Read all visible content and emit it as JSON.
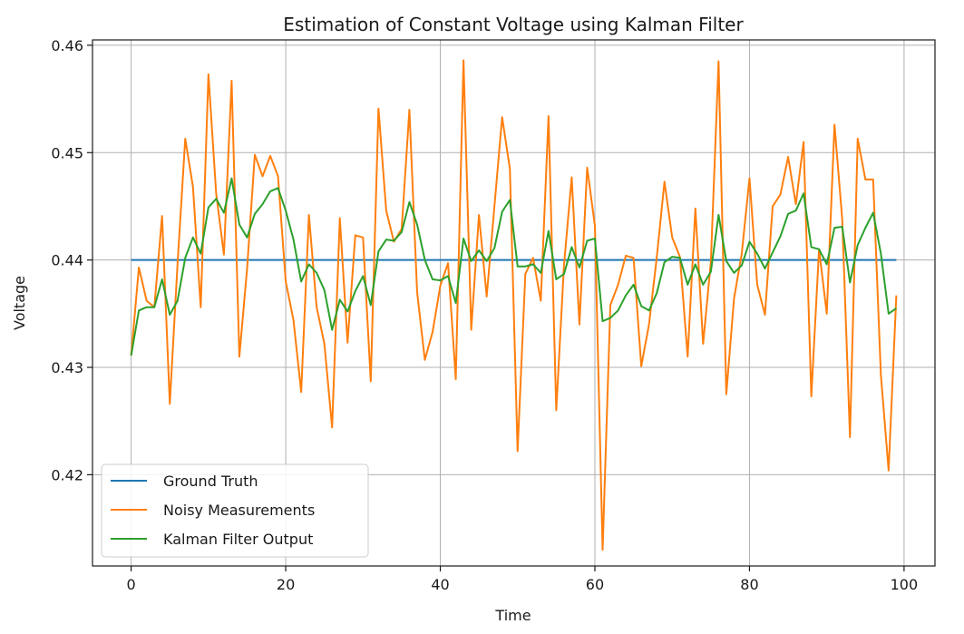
{
  "chart_data": {
    "type": "line",
    "title": "Estimation of Constant Voltage using Kalman Filter",
    "xlabel": "Time",
    "ylabel": "Voltage",
    "xlim": [
      -5,
      104
    ],
    "ylim": [
      0.4115,
      0.4605
    ],
    "xticks": [
      0,
      20,
      40,
      60,
      80,
      100
    ],
    "yticks": [
      0.42,
      0.43,
      0.44,
      0.45,
      0.46
    ],
    "ytick_labels": [
      "0.42",
      "0.43",
      "0.44",
      "0.45",
      "0.46"
    ],
    "grid": true,
    "legend_position": "lower-left",
    "series": [
      {
        "name": "Ground Truth",
        "color": "#1f77b4",
        "x": [
          0,
          99
        ],
        "values": [
          0.44,
          0.44
        ]
      },
      {
        "name": "Noisy Measurements",
        "color": "#ff7f0e",
        "x": [
          0,
          1,
          2,
          3,
          4,
          5,
          6,
          7,
          8,
          9,
          10,
          11,
          12,
          13,
          14,
          15,
          16,
          17,
          18,
          19,
          20,
          21,
          22,
          23,
          24,
          25,
          26,
          27,
          28,
          29,
          30,
          31,
          32,
          33,
          34,
          35,
          36,
          37,
          38,
          39,
          40,
          41,
          42,
          43,
          44,
          45,
          46,
          47,
          48,
          49,
          50,
          51,
          52,
          53,
          54,
          55,
          56,
          57,
          58,
          59,
          60,
          61,
          62,
          63,
          64,
          65,
          66,
          67,
          68,
          69,
          70,
          71,
          72,
          73,
          74,
          75,
          76,
          77,
          78,
          79,
          80,
          81,
          82,
          83,
          84,
          85,
          86,
          87,
          88,
          89,
          90,
          91,
          92,
          93,
          94,
          95,
          96,
          97,
          98,
          99
        ],
        "values": [
          0.4311,
          0.4393,
          0.4362,
          0.4356,
          0.4441,
          0.4266,
          0.4396,
          0.4513,
          0.4468,
          0.4356,
          0.4573,
          0.4462,
          0.4405,
          0.4567,
          0.431,
          0.4392,
          0.4498,
          0.4478,
          0.4497,
          0.4478,
          0.438,
          0.4344,
          0.4277,
          0.4442,
          0.4356,
          0.4322,
          0.4244,
          0.4439,
          0.4323,
          0.4423,
          0.4421,
          0.4287,
          0.4541,
          0.4446,
          0.4417,
          0.4429,
          0.454,
          0.437,
          0.4307,
          0.4333,
          0.4376,
          0.4397,
          0.4289,
          0.4586,
          0.4335,
          0.4442,
          0.4366,
          0.445,
          0.4533,
          0.4485,
          0.4222,
          0.4387,
          0.4402,
          0.4362,
          0.4534,
          0.426,
          0.4395,
          0.4477,
          0.434,
          0.4486,
          0.4432,
          0.413,
          0.4358,
          0.4377,
          0.4404,
          0.4402,
          0.4301,
          0.434,
          0.4402,
          0.4473,
          0.4421,
          0.4403,
          0.431,
          0.4448,
          0.4322,
          0.4398,
          0.4585,
          0.4275,
          0.4364,
          0.4406,
          0.4476,
          0.4377,
          0.4349,
          0.445,
          0.4461,
          0.4496,
          0.4452,
          0.451,
          0.4273,
          0.441,
          0.435,
          0.4526,
          0.4438,
          0.4235,
          0.4513,
          0.4475,
          0.4475,
          0.4293,
          0.4204,
          0.4367
        ]
      },
      {
        "name": "Kalman Filter Output",
        "color": "#2ca02c",
        "x": [
          0,
          1,
          2,
          3,
          4,
          5,
          6,
          7,
          8,
          9,
          10,
          11,
          12,
          13,
          14,
          15,
          16,
          17,
          18,
          19,
          20,
          21,
          22,
          23,
          24,
          25,
          26,
          27,
          28,
          29,
          30,
          31,
          32,
          33,
          34,
          35,
          36,
          37,
          38,
          39,
          40,
          41,
          42,
          43,
          44,
          45,
          46,
          47,
          48,
          49,
          50,
          51,
          52,
          53,
          54,
          55,
          56,
          57,
          58,
          59,
          60,
          61,
          62,
          63,
          64,
          65,
          66,
          67,
          68,
          69,
          70,
          71,
          72,
          73,
          74,
          75,
          76,
          77,
          78,
          79,
          80,
          81,
          82,
          83,
          84,
          85,
          86,
          87,
          88,
          89,
          90,
          91,
          92,
          93,
          94,
          95,
          96,
          97,
          98,
          99
        ],
        "values": [
          0.4311,
          0.4353,
          0.4356,
          0.4356,
          0.4382,
          0.4349,
          0.4362,
          0.4402,
          0.4421,
          0.4406,
          0.4449,
          0.4457,
          0.4444,
          0.4476,
          0.4433,
          0.4421,
          0.4443,
          0.4452,
          0.4464,
          0.4467,
          0.4446,
          0.4419,
          0.438,
          0.4396,
          0.4388,
          0.4372,
          0.4335,
          0.4363,
          0.4352,
          0.4371,
          0.4385,
          0.4358,
          0.4408,
          0.4419,
          0.4418,
          0.4426,
          0.4454,
          0.4433,
          0.44,
          0.4382,
          0.4381,
          0.4385,
          0.436,
          0.442,
          0.4399,
          0.4409,
          0.4399,
          0.4411,
          0.4445,
          0.4456,
          0.4394,
          0.4394,
          0.4396,
          0.4388,
          0.4427,
          0.4382,
          0.4387,
          0.4412,
          0.4393,
          0.4418,
          0.442,
          0.4343,
          0.4346,
          0.4353,
          0.4367,
          0.4377,
          0.4357,
          0.4353,
          0.4369,
          0.4398,
          0.4403,
          0.4402,
          0.4377,
          0.4396,
          0.4377,
          0.4389,
          0.4442,
          0.4399,
          0.4388,
          0.4395,
          0.4417,
          0.4406,
          0.4392,
          0.4407,
          0.4422,
          0.4443,
          0.4446,
          0.4462,
          0.4412,
          0.441,
          0.4396,
          0.443,
          0.4431,
          0.4379,
          0.4414,
          0.443,
          0.4444,
          0.4406,
          0.435,
          0.4355
        ]
      }
    ]
  }
}
